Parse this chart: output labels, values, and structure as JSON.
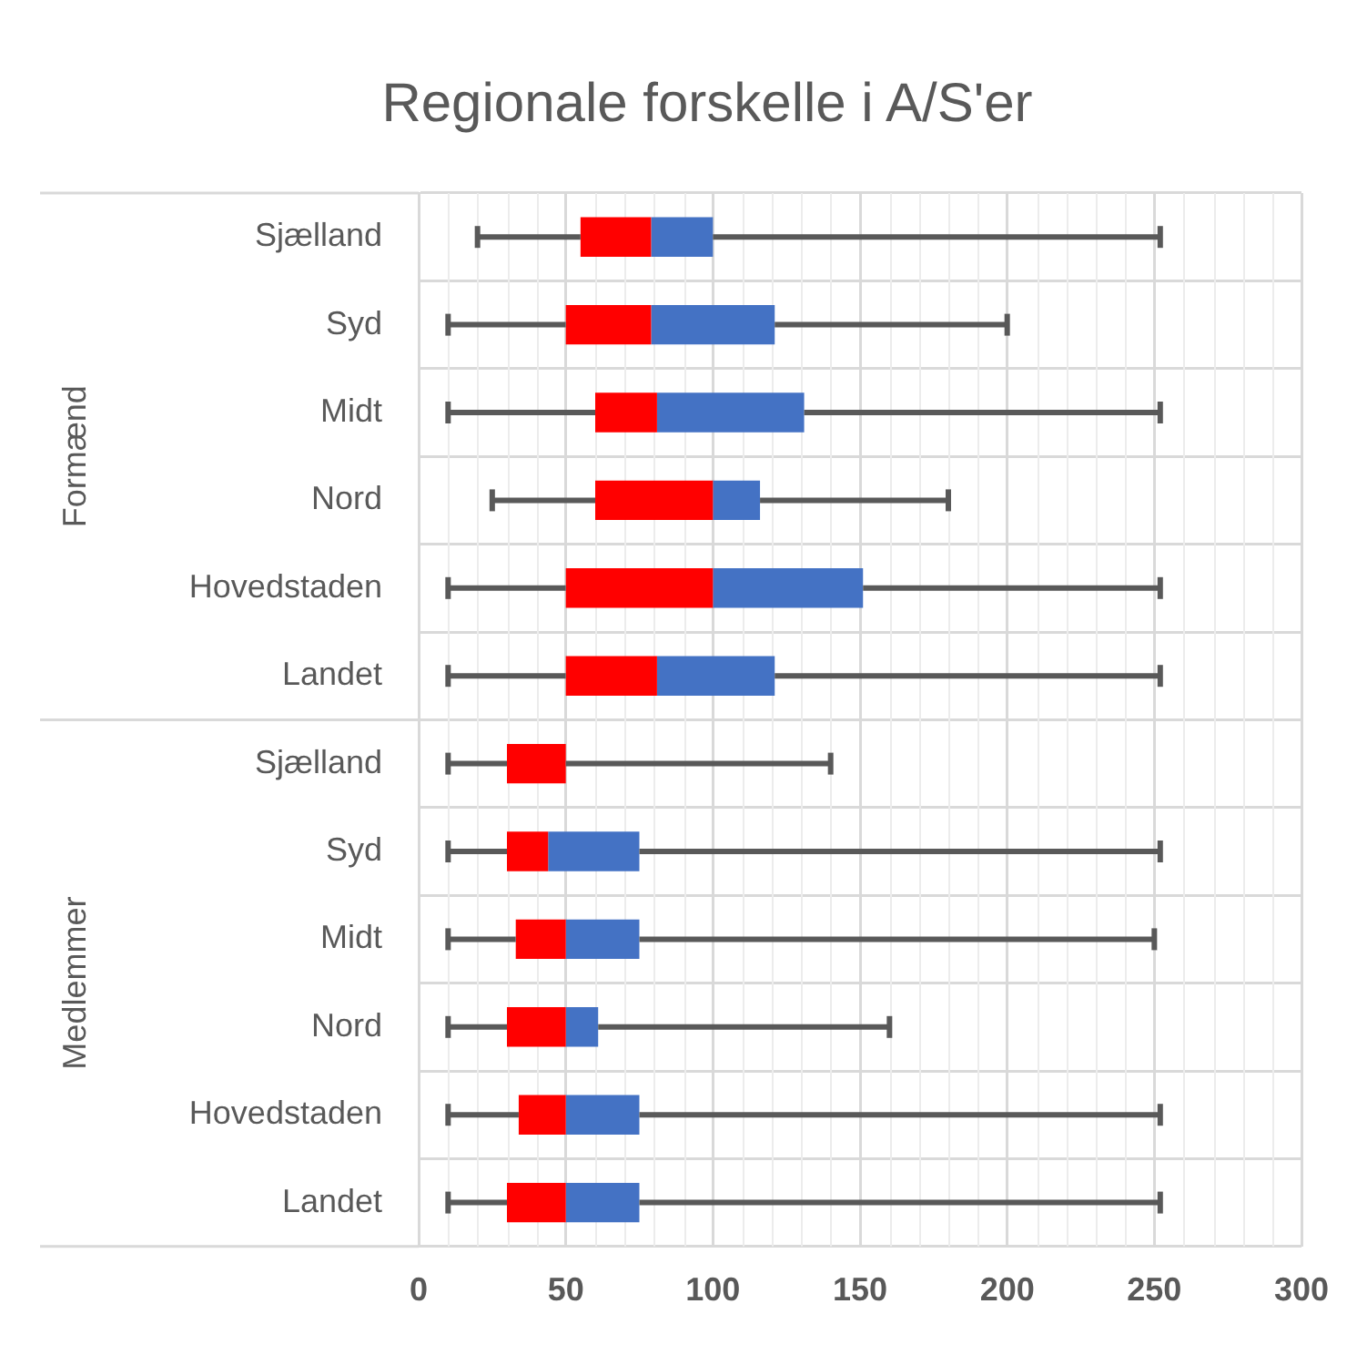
{
  "chart_data": {
    "type": "box",
    "title": "Regionale forskelle i A/S'er",
    "orientation": "horizontal",
    "categories": [
      "Sjælland",
      "Syd",
      "Midt",
      "Nord",
      "Hovedstaden",
      "Landet",
      "Sjælland",
      "Syd",
      "Midt",
      "Nord",
      "Hovedstaden",
      "Landet"
    ],
    "boxes": [
      {
        "low": 20,
        "q1": 55,
        "median": 79,
        "q3": 100,
        "high": 252
      },
      {
        "low": 10,
        "q1": 50,
        "median": 79,
        "q3": 121,
        "high": 200
      },
      {
        "low": 10,
        "q1": 60,
        "median": 81,
        "q3": 131,
        "high": 252
      },
      {
        "low": 25,
        "q1": 60,
        "median": 100,
        "q3": 116,
        "high": 180
      },
      {
        "low": 10,
        "q1": 50,
        "median": 100,
        "q3": 151,
        "high": 252
      },
      {
        "low": 10,
        "q1": 50,
        "median": 81,
        "q3": 121,
        "high": 252
      },
      {
        "low": 10,
        "q1": 30,
        "median": 50,
        "q3": 50,
        "high": 140
      },
      {
        "low": 10,
        "q1": 30,
        "median": 44,
        "q3": 75,
        "high": 252
      },
      {
        "low": 10,
        "q1": 33,
        "median": 50,
        "q3": 75,
        "high": 250
      },
      {
        "low": 10,
        "q1": 30,
        "median": 50,
        "q3": 61,
        "high": 160
      },
      {
        "low": 10,
        "q1": 34,
        "median": 50,
        "q3": 75,
        "high": 252
      },
      {
        "low": 10,
        "q1": 30,
        "median": 50,
        "q3": 75,
        "high": 252
      }
    ],
    "xlim": [
      0,
      300
    ],
    "xticks": [
      0,
      50,
      100,
      150,
      200,
      250,
      300
    ],
    "annotations": [
      "Formænd",
      "Medlemmer"
    ],
    "grid": true,
    "legend": false
  }
}
